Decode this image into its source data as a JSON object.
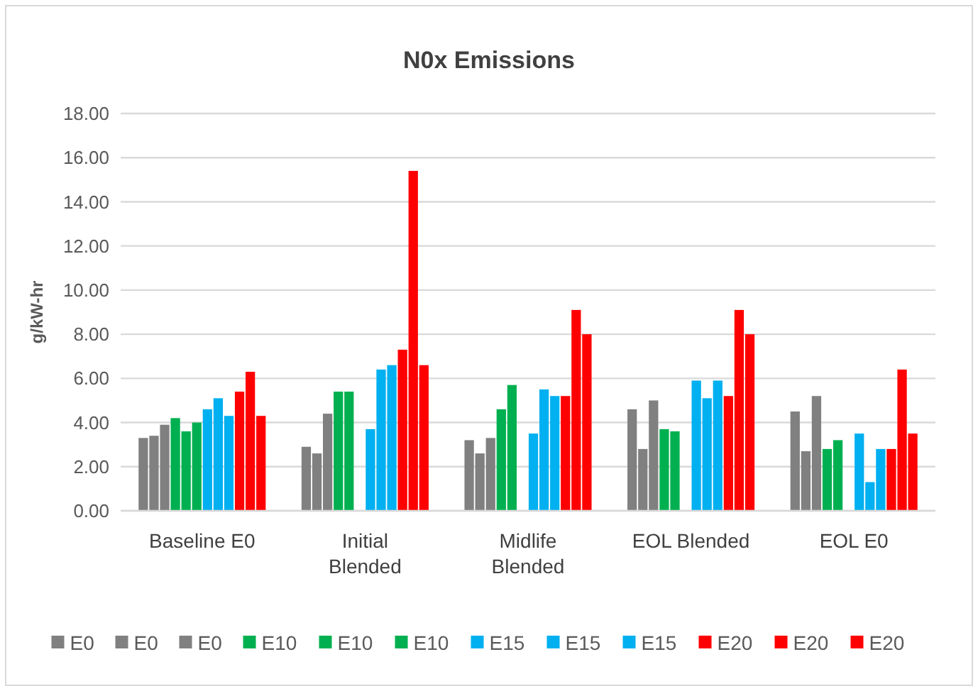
{
  "chart_data": {
    "type": "bar",
    "title": "N0x Emissions",
    "ylabel": "g/kW-hr",
    "categories": [
      "Baseline E0",
      "Initial Blended",
      "Midlife Blended",
      "EOL Blended",
      "EOL E0"
    ],
    "series": [
      {
        "name": "E0",
        "color": "#808080",
        "values": [
          3.3,
          2.9,
          3.2,
          4.6,
          4.5
        ]
      },
      {
        "name": "E0",
        "color": "#808080",
        "values": [
          3.4,
          2.6,
          2.6,
          2.8,
          2.7
        ]
      },
      {
        "name": "E0",
        "color": "#808080",
        "values": [
          3.9,
          4.4,
          3.3,
          5.0,
          5.2
        ]
      },
      {
        "name": "E10",
        "color": "#00b050",
        "values": [
          4.2,
          5.4,
          4.6,
          3.7,
          2.8
        ]
      },
      {
        "name": "E10",
        "color": "#00b050",
        "values": [
          3.6,
          5.4,
          5.7,
          3.6,
          3.2
        ]
      },
      {
        "name": "E10",
        "color": "#00b050",
        "values": [
          4.0,
          null,
          null,
          null,
          null
        ]
      },
      {
        "name": "E15",
        "color": "#00b0f0",
        "values": [
          4.6,
          3.7,
          3.5,
          5.9,
          3.5
        ]
      },
      {
        "name": "E15",
        "color": "#00b0f0",
        "values": [
          5.1,
          6.4,
          5.5,
          5.1,
          1.3
        ]
      },
      {
        "name": "E15",
        "color": "#00b0f0",
        "values": [
          4.3,
          6.6,
          5.2,
          5.9,
          2.8
        ]
      },
      {
        "name": "E20",
        "color": "#ff0000",
        "values": [
          5.4,
          7.3,
          5.2,
          5.2,
          2.8
        ]
      },
      {
        "name": "E20",
        "color": "#ff0000",
        "values": [
          6.3,
          15.4,
          9.1,
          9.1,
          6.4
        ]
      },
      {
        "name": "E20",
        "color": "#ff0000",
        "values": [
          4.3,
          6.6,
          8.0,
          8.0,
          3.5
        ]
      }
    ],
    "ylim": [
      0,
      18
    ],
    "yticks": [
      {
        "value": 0,
        "label": "0.00"
      },
      {
        "value": 2,
        "label": "2.00"
      },
      {
        "value": 4,
        "label": "4.00"
      },
      {
        "value": 6,
        "label": "6.00"
      },
      {
        "value": 8,
        "label": "8.00"
      },
      {
        "value": 10,
        "label": "10.00"
      },
      {
        "value": 12,
        "label": "12.00"
      },
      {
        "value": 14,
        "label": "14.00"
      },
      {
        "value": 16,
        "label": "16.00"
      },
      {
        "value": 18,
        "label": "18.00"
      }
    ],
    "grid": "y",
    "legend": "bottom"
  }
}
